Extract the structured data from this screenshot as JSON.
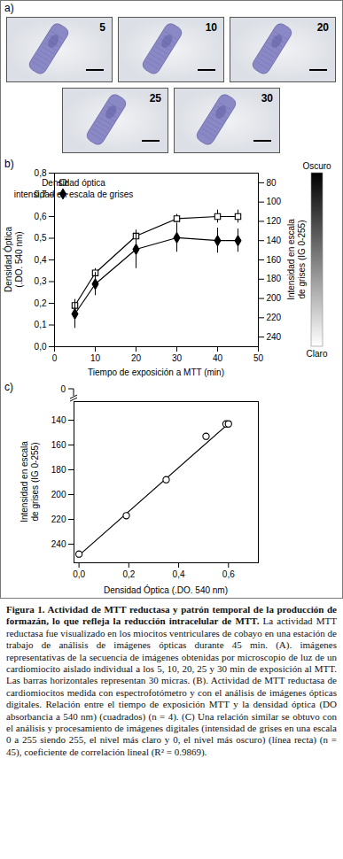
{
  "panel_a": {
    "label": "a)",
    "frames": [
      5,
      10,
      20,
      25,
      30
    ]
  },
  "chart_data": [
    {
      "type": "line",
      "panel_label": "b)",
      "xlabel": "Tiempo de exposición a MTT (min)",
      "ylabel": "Densidad Óptica (.DO. 540 nm)",
      "y2label": "Intensidad en escala de grises (IG 0-255)",
      "x": [
        5,
        10,
        20,
        30,
        40,
        45
      ],
      "xlim": [
        0,
        50
      ],
      "xticks": [
        0,
        10,
        20,
        30,
        40,
        50
      ],
      "ylim": [
        0,
        0.8
      ],
      "yticks": [
        {
          "value": 0,
          "label": "0,0"
        },
        {
          "value": 0.1,
          "label": "0,1"
        },
        {
          "value": 0.2,
          "label": "0,2"
        },
        {
          "value": 0.3,
          "label": "0,3"
        },
        {
          "value": 0.4,
          "label": "0,4"
        },
        {
          "value": 0.5,
          "label": "0,5"
        },
        {
          "value": 0.6,
          "label": "0,6"
        },
        {
          "value": 0.7,
          "label": "0,7"
        },
        {
          "value": 0.8,
          "label": "0,8"
        }
      ],
      "y2lim": [
        250,
        70
      ],
      "y2ticks": [
        80,
        100,
        120,
        140,
        160,
        180,
        200,
        220,
        240
      ],
      "legend": "top-left",
      "series": [
        {
          "name": "Densidad óptica",
          "color": "#000000",
          "marker": "square_open",
          "values": [
            0.19,
            0.34,
            0.51,
            0.59,
            0.6,
            0.6
          ],
          "errors": [
            0.01,
            0.02,
            0.01,
            0.02,
            0.03,
            0.03
          ]
        },
        {
          "name": "intensidad en escala de grises",
          "axis": "y2",
          "color": "#000000",
          "marker": "diamond",
          "values": [
            216,
            185,
            149,
            137,
            140,
            140
          ],
          "errors": [
            15,
            12,
            20,
            15,
            13,
            12
          ]
        }
      ],
      "colorbar": {
        "top_label": "Oscuro",
        "bottom_label": "Claro"
      }
    },
    {
      "type": "scatter",
      "panel_label": "c)",
      "xlabel": "Densidad Óptica (.DO. 540 nm)",
      "ylabel": "Intensidad en escala de grises (IG 0-255)",
      "x": [
        0,
        0.19,
        0.35,
        0.51,
        0.59,
        0.6
      ],
      "values": [
        248,
        217,
        188,
        153,
        143,
        143
      ],
      "color": "#000000",
      "marker": "circle_open",
      "fit": {
        "x": [
          0,
          0.61
        ],
        "values": [
          249,
          141
        ]
      },
      "xlim": [
        -0.02,
        0.72
      ],
      "xticks": [
        {
          "value": 0,
          "label": "0,0"
        },
        {
          "value": 0.2,
          "label": "0,2"
        },
        {
          "value": 0.4,
          "label": "0,4"
        },
        {
          "value": 0.6,
          "label": "0,6"
        }
      ],
      "ylim": [
        255,
        125
      ],
      "yticks": [
        140,
        160,
        180,
        200,
        220,
        240
      ],
      "y_break_tick": 0
    }
  ],
  "caption": {
    "title": "Figura 1. Actividad de MTT reductasa y patrón temporal de la producción de formazán, lo que refleja la reducción intracelular de MTT.",
    "text": "La actividad MTT reductasa fue visualizado en los miocitos ventriculares de cobayo en una estación de trabajo de análisis de imágenes ópticas durante 45 min. (A). imágenes representativas de la secuencia de imágenes obtenidas por microscopio de luz de un cardiomiocito aislado individual a los 5, 10, 20, 25 y 30 min de exposición al MTT. Las barras horizontales representan 30 micras. (B). Actividad de MTT reductasa de cardiomiocitos medida con espectrofotómetro y con el análisis de imágenes ópticas digitales. Relación entre el tiempo de exposición MTT y la densidad óptica (DO absorbancia a 540 nm) (cuadrados) (n = 4). (C) Una relación similar se obtuvo con el análisis y procesamiento de imágenes digitales (intensidad de grises en una escala 0 a 255 siendo 255, el nivel más claro y 0, el nivel más oscuro) (línea recta) (n = 45), coeficiente de correlación lineal (R² = 0.9869)."
  }
}
